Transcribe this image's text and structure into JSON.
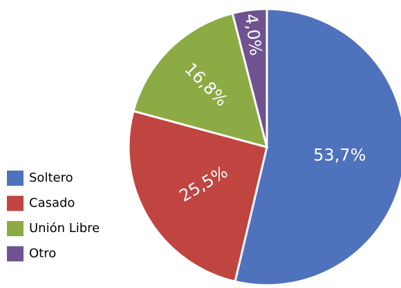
{
  "chart_data": {
    "type": "pie",
    "categories": [
      "Soltero",
      "Casado",
      "Unión Libre",
      "Otro"
    ],
    "values": [
      53.7,
      25.5,
      16.8,
      4.0
    ],
    "value_labels": [
      "53,7%",
      "25,5%",
      "16,8%",
      "4,0%"
    ],
    "colors": [
      "#4f72bd",
      "#c0443f",
      "#8cab45",
      "#6f528f"
    ],
    "legend": "left"
  }
}
